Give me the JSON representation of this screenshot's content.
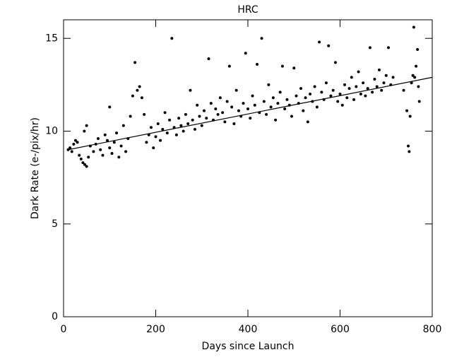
{
  "chart_data": {
    "type": "scatter",
    "title": "HRC",
    "xlabel": "Days since Launch",
    "ylabel": "Dark Rate (e-/pix/hr)",
    "xlim": [
      0,
      800
    ],
    "ylim": [
      0,
      16
    ],
    "xticks": [
      0,
      200,
      400,
      600,
      800
    ],
    "yticks": [
      0,
      5,
      10,
      15
    ],
    "grid": false,
    "series": [
      {
        "mode": "markers",
        "color": "#000000",
        "x": [
          10,
          14,
          18,
          22,
          26,
          30,
          34,
          38,
          42,
          46,
          50,
          54,
          58,
          50,
          45,
          65,
          70,
          75,
          80,
          85,
          90,
          95,
          100,
          100,
          105,
          110,
          115,
          120,
          125,
          130,
          135,
          140,
          145,
          150,
          155,
          160,
          165,
          170,
          175,
          180,
          185,
          190,
          195,
          200,
          205,
          210,
          215,
          220,
          225,
          230,
          235,
          240,
          245,
          250,
          255,
          260,
          265,
          270,
          275,
          280,
          285,
          290,
          295,
          300,
          305,
          310,
          315,
          320,
          325,
          330,
          335,
          340,
          345,
          350,
          355,
          360,
          365,
          370,
          375,
          380,
          385,
          390,
          395,
          400,
          405,
          410,
          415,
          420,
          425,
          430,
          435,
          440,
          445,
          450,
          455,
          460,
          465,
          470,
          475,
          480,
          485,
          490,
          495,
          500,
          505,
          510,
          515,
          520,
          525,
          530,
          535,
          540,
          545,
          550,
          555,
          560,
          565,
          570,
          575,
          580,
          585,
          590,
          595,
          600,
          605,
          610,
          615,
          620,
          625,
          630,
          635,
          640,
          645,
          650,
          655,
          660,
          665,
          670,
          675,
          680,
          685,
          690,
          695,
          700,
          705,
          710,
          715,
          745,
          748,
          750,
          752,
          755,
          758,
          760,
          762,
          765,
          768,
          770,
          772,
          738
        ],
        "values": [
          9.0,
          9.1,
          8.9,
          9.3,
          9.5,
          9.4,
          8.7,
          8.5,
          8.3,
          8.2,
          8.1,
          8.6,
          9.2,
          10.3,
          10.0,
          8.9,
          9.3,
          9.6,
          9.0,
          8.7,
          9.8,
          9.5,
          9.1,
          11.3,
          8.8,
          9.4,
          9.9,
          8.6,
          9.2,
          10.3,
          8.9,
          9.6,
          10.8,
          11.9,
          13.7,
          12.2,
          12.4,
          11.8,
          10.9,
          9.4,
          9.8,
          10.2,
          9.1,
          9.7,
          10.4,
          9.5,
          10.1,
          11.0,
          9.9,
          10.6,
          15.0,
          10.2,
          9.8,
          10.7,
          10.3,
          10.0,
          10.9,
          10.4,
          12.2,
          10.6,
          10.1,
          11.4,
          10.8,
          10.3,
          11.1,
          10.7,
          13.9,
          11.5,
          10.6,
          11.2,
          10.9,
          11.8,
          11.0,
          10.5,
          11.6,
          13.5,
          11.3,
          10.4,
          12.2,
          11.1,
          10.8,
          11.5,
          14.2,
          11.2,
          10.7,
          11.9,
          11.4,
          13.6,
          11.0,
          15.0,
          11.6,
          10.9,
          12.5,
          11.3,
          11.8,
          10.6,
          11.5,
          12.1,
          13.5,
          11.2,
          11.7,
          11.4,
          10.8,
          13.4,
          11.9,
          11.5,
          12.3,
          11.1,
          11.8,
          10.5,
          12.0,
          11.6,
          12.4,
          11.3,
          14.8,
          12.1,
          11.7,
          12.6,
          14.6,
          11.9,
          12.2,
          13.7,
          11.6,
          12.0,
          11.4,
          12.5,
          11.8,
          12.3,
          12.9,
          11.7,
          12.4,
          13.2,
          12.0,
          12.6,
          11.9,
          12.3,
          14.5,
          12.1,
          12.8,
          12.4,
          13.3,
          12.2,
          12.6,
          13.0,
          14.5,
          12.5,
          12.9,
          11.1,
          9.2,
          8.9,
          10.8,
          12.6,
          13.0,
          15.6,
          12.9,
          13.5,
          14.4,
          12.4,
          11.6,
          12.2
        ]
      },
      {
        "mode": "line",
        "color": "#000000",
        "x": [
          10,
          800
        ],
        "values": [
          9.0,
          12.9
        ]
      }
    ]
  }
}
